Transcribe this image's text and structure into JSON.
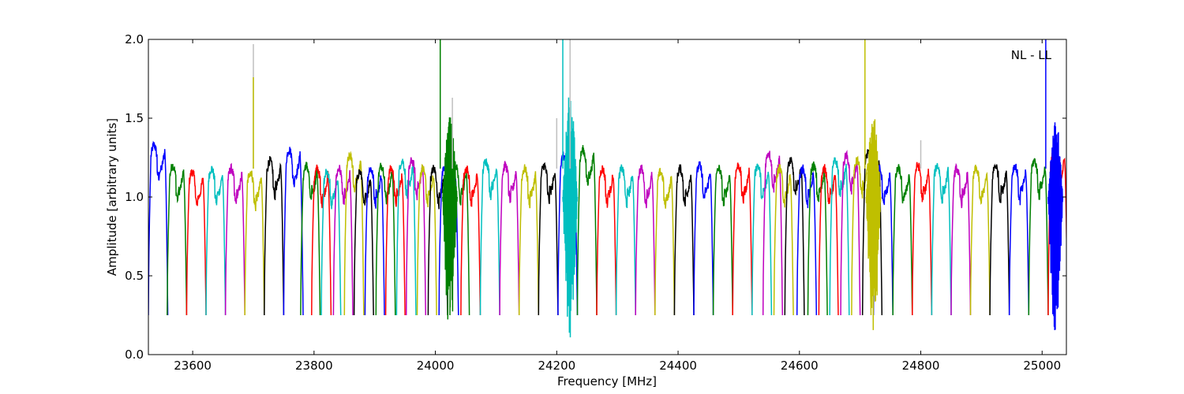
{
  "chart_data": {
    "type": "line",
    "title": "",
    "annotation": "NL - LL",
    "xlabel": "Frequency [MHz]",
    "ylabel": "Amplitude [arbitrary units]",
    "xlim": [
      23527,
      25040
    ],
    "ylim": [
      0.0,
      2.0
    ],
    "xticks": [
      23600,
      23800,
      24000,
      24200,
      24400,
      24600,
      24800,
      25000
    ],
    "yticks": [
      0.0,
      0.5,
      1.0,
      1.5,
      2.0
    ],
    "xtick_labels": [
      "23600",
      "23800",
      "24000",
      "24200",
      "24400",
      "24600",
      "24800",
      "25000"
    ],
    "ytick_labels": [
      "0.0",
      "0.5",
      "1.0",
      "1.5",
      "2.0"
    ],
    "grid": false,
    "legend": "none",
    "color_cycle": [
      "#0000ff",
      "#008000",
      "#ff0000",
      "#00bfbf",
      "#bf00bf",
      "#bfbf00",
      "#000000"
    ],
    "segment_span_mhz": 32,
    "segment_starts_mhz": [
      23527,
      23558,
      23590,
      23622,
      23654,
      23686,
      23718,
      23750,
      23778,
      23796,
      23812,
      23832,
      23850,
      23866,
      23884,
      23902,
      23918,
      23936,
      23952,
      23970,
      23988,
      24006,
      24024,
      24042,
      24074,
      24106,
      24138,
      24170,
      24202,
      24234,
      24266,
      24298,
      24330,
      24362,
      24394,
      24426,
      24458,
      24490,
      24522,
      24540,
      24558,
      24576,
      24596,
      24614,
      24632,
      24650,
      24668,
      24686,
      24704,
      24722,
      24754,
      24786,
      24818,
      24850,
      24882,
      24914,
      24946,
      24978,
      25010
    ],
    "segment_levels": [
      1.35,
      1.22,
      1.18,
      1.2,
      1.2,
      1.18,
      1.25,
      1.32,
      1.22,
      1.2,
      1.18,
      1.2,
      1.28,
      1.18,
      1.2,
      1.22,
      1.2,
      1.25,
      1.25,
      1.2,
      1.2,
      1.2,
      1.22,
      1.2,
      1.25,
      1.22,
      1.2,
      1.22,
      1.28,
      1.32,
      1.2,
      1.2,
      1.2,
      1.18,
      1.2,
      1.22,
      1.2,
      1.22,
      1.22,
      1.3,
      1.2,
      1.25,
      1.2,
      1.22,
      1.2,
      1.25,
      1.28,
      1.25,
      1.3,
      1.2,
      1.2,
      1.22,
      1.22,
      1.2,
      1.2,
      1.22,
      1.22,
      1.25,
      1.3
    ],
    "series_min": 0.25,
    "spikes": [
      {
        "x": 23700,
        "y": 1.97,
        "color": "#bfbfbf"
      },
      {
        "x": 23700,
        "y": 1.76,
        "color": "#bfbf00"
      },
      {
        "x": 24008,
        "y": 2.0,
        "color": "#008000"
      },
      {
        "x": 24028,
        "y": 1.63,
        "color": "#bfbfbf"
      },
      {
        "x": 24200,
        "y": 1.5,
        "color": "#bfbfbf"
      },
      {
        "x": 24222,
        "y": 2.0,
        "color": "#bfbfbf"
      },
      {
        "x": 24210,
        "y": 2.0,
        "color": "#00bfbf"
      },
      {
        "x": 24708,
        "y": 2.0,
        "color": "#bfbf00"
      },
      {
        "x": 24800,
        "y": 1.36,
        "color": "#bfbfbf"
      },
      {
        "x": 25006,
        "y": 2.0,
        "color": "#0000ff"
      }
    ],
    "noisy_regions": [
      {
        "center": 24024,
        "color": "#008000",
        "min": 0.1,
        "max": 1.52
      },
      {
        "center": 24222,
        "color": "#00bfbf",
        "min": 0.09,
        "max": 1.67
      },
      {
        "center": 24722,
        "color": "#bfbf00",
        "min": 0.1,
        "max": 1.53
      },
      {
        "center": 25022,
        "color": "#0000ff",
        "min": 0.1,
        "max": 1.52
      }
    ]
  }
}
